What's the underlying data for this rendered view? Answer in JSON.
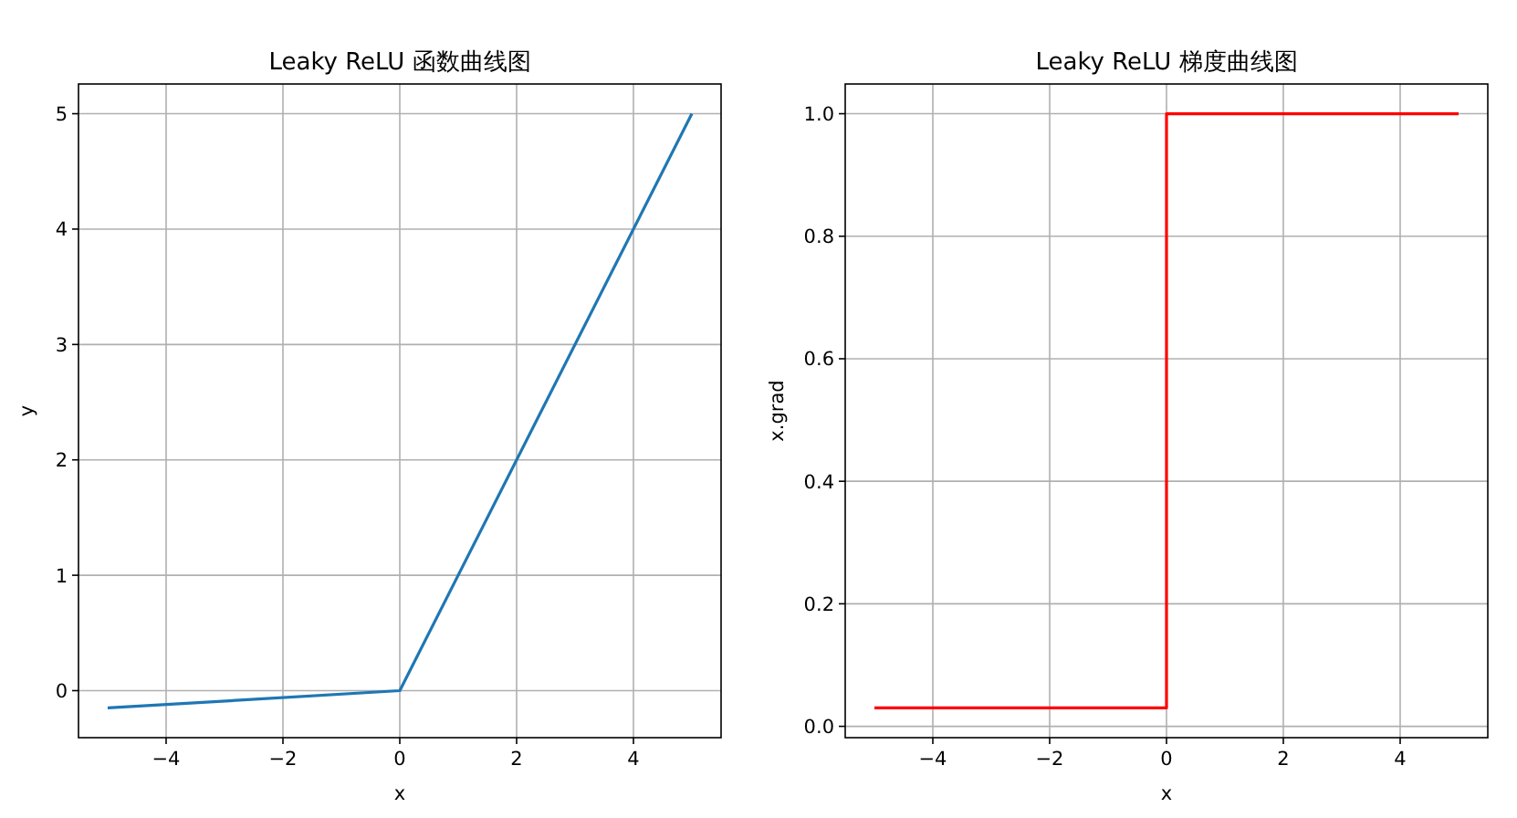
{
  "chart_data": [
    {
      "type": "line",
      "title": "Leaky ReLU 函数曲线图",
      "xlabel": "x",
      "ylabel": "y",
      "xlim": [
        -5.5,
        5.5
      ],
      "ylim": [
        -0.4075,
        5.2575
      ],
      "xticks": [
        -4,
        -2,
        0,
        2,
        4
      ],
      "yticks": [
        0,
        1,
        2,
        3,
        4,
        5
      ],
      "grid": true,
      "series": [
        {
          "color": "#1f77b4",
          "x": [
            -5,
            0,
            5
          ],
          "values": [
            -0.15,
            0,
            5
          ]
        }
      ]
    },
    {
      "type": "line",
      "title": "Leaky ReLU 梯度曲线图",
      "xlabel": "x",
      "ylabel": "x.grad",
      "xlim": [
        -5.5,
        5.5
      ],
      "ylim": [
        -0.0185,
        1.0485
      ],
      "xticks": [
        -4,
        -2,
        0,
        2,
        4
      ],
      "yticks": [
        {
          "value": 0,
          "label": "0.0"
        },
        {
          "value": 0.2,
          "label": "0.2"
        },
        {
          "value": 0.4,
          "label": "0.4"
        },
        {
          "value": 0.6,
          "label": "0.6"
        },
        {
          "value": 0.8,
          "label": "0.8"
        },
        {
          "value": 1,
          "label": "1.0"
        }
      ],
      "grid": true,
      "series": [
        {
          "color": "#ff0000",
          "x": [
            -5,
            0,
            0,
            5
          ],
          "values": [
            0.03,
            0.03,
            1,
            1
          ]
        }
      ]
    }
  ]
}
